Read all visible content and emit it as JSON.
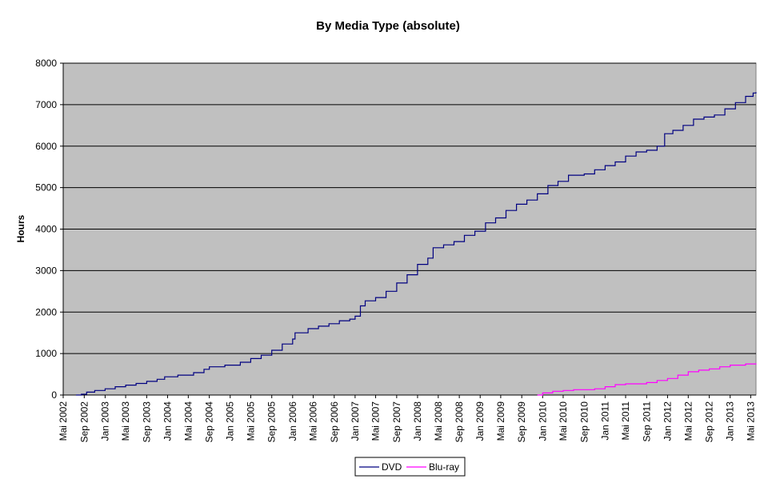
{
  "chart_data": {
    "type": "line",
    "title": "By Media Type (absolute)",
    "xlabel": "",
    "ylabel": "Hours",
    "ylim": [
      0,
      8000
    ],
    "yticks": [
      0,
      1000,
      2000,
      3000,
      4000,
      5000,
      6000,
      7000,
      8000
    ],
    "xlim": [
      "2002-05-01",
      "2013-06-01"
    ],
    "xticks": [
      "Mai 2002",
      "Sep 2002",
      "Jan 2003",
      "Mai 2003",
      "Sep 2003",
      "Jan 2004",
      "Mai 2004",
      "Sep 2004",
      "Jan 2005",
      "Mai 2005",
      "Sep 2005",
      "Jan 2006",
      "Mai 2006",
      "Sep 2006",
      "Jan 2007",
      "Mai 2007",
      "Sep 2007",
      "Jan 2008",
      "Mai 2008",
      "Sep 2008",
      "Jan 2009",
      "Mai 2009",
      "Sep 2009",
      "Jan 2010",
      "Mai 2010",
      "Sep 2010",
      "Jan 2011",
      "Mai 2011",
      "Sep 2011",
      "Jan 2012",
      "Mai 2012",
      "Sep 2012",
      "Jan 2013",
      "Mai 2013"
    ],
    "grid": true,
    "legend": "bottom",
    "series": [
      {
        "name": "DVD",
        "color": "#000080",
        "points": [
          [
            "2002-07-15",
            0
          ],
          [
            "2002-08-15",
            20
          ],
          [
            "2002-09-15",
            70
          ],
          [
            "2002-11-01",
            110
          ],
          [
            "2003-01-01",
            150
          ],
          [
            "2003-03-01",
            200
          ],
          [
            "2003-05-01",
            240
          ],
          [
            "2003-07-01",
            280
          ],
          [
            "2003-09-01",
            330
          ],
          [
            "2003-11-01",
            380
          ],
          [
            "2003-12-15",
            440
          ],
          [
            "2004-03-01",
            480
          ],
          [
            "2004-06-01",
            540
          ],
          [
            "2004-08-01",
            620
          ],
          [
            "2004-09-01",
            680
          ],
          [
            "2004-12-01",
            720
          ],
          [
            "2005-03-01",
            790
          ],
          [
            "2005-05-01",
            880
          ],
          [
            "2005-07-01",
            960
          ],
          [
            "2005-09-01",
            1080
          ],
          [
            "2005-11-01",
            1230
          ],
          [
            "2006-01-01",
            1350
          ],
          [
            "2006-01-15",
            1500
          ],
          [
            "2006-04-01",
            1600
          ],
          [
            "2006-06-01",
            1660
          ],
          [
            "2006-08-01",
            1720
          ],
          [
            "2006-10-01",
            1790
          ],
          [
            "2006-12-01",
            1830
          ],
          [
            "2007-01-01",
            1900
          ],
          [
            "2007-02-01",
            2150
          ],
          [
            "2007-03-01",
            2270
          ],
          [
            "2007-05-01",
            2350
          ],
          [
            "2007-07-01",
            2500
          ],
          [
            "2007-09-01",
            2700
          ],
          [
            "2007-11-01",
            2900
          ],
          [
            "2008-01-01",
            3150
          ],
          [
            "2008-03-01",
            3300
          ],
          [
            "2008-04-01",
            3550
          ],
          [
            "2008-06-01",
            3620
          ],
          [
            "2008-08-01",
            3700
          ],
          [
            "2008-10-01",
            3850
          ],
          [
            "2008-12-01",
            3950
          ],
          [
            "2009-02-01",
            4150
          ],
          [
            "2009-04-01",
            4270
          ],
          [
            "2009-06-01",
            4450
          ],
          [
            "2009-08-01",
            4600
          ],
          [
            "2009-10-01",
            4700
          ],
          [
            "2009-12-01",
            4850
          ],
          [
            "2010-02-01",
            5050
          ],
          [
            "2010-04-01",
            5150
          ],
          [
            "2010-06-01",
            5300
          ],
          [
            "2010-09-01",
            5330
          ],
          [
            "2010-11-01",
            5430
          ],
          [
            "2011-01-01",
            5530
          ],
          [
            "2011-03-01",
            5620
          ],
          [
            "2011-05-01",
            5760
          ],
          [
            "2011-07-01",
            5860
          ],
          [
            "2011-09-01",
            5900
          ],
          [
            "2011-11-01",
            6000
          ],
          [
            "2011-12-15",
            6300
          ],
          [
            "2012-02-01",
            6380
          ],
          [
            "2012-04-01",
            6500
          ],
          [
            "2012-06-01",
            6650
          ],
          [
            "2012-08-01",
            6700
          ],
          [
            "2012-10-01",
            6750
          ],
          [
            "2012-12-01",
            6900
          ],
          [
            "2013-02-01",
            7050
          ],
          [
            "2013-04-01",
            7200
          ],
          [
            "2013-05-15",
            7280
          ],
          [
            "2013-06-01",
            7300
          ]
        ]
      },
      {
        "name": "Blu-ray",
        "color": "#ff00ff",
        "points": [
          [
            "2009-12-01",
            0
          ],
          [
            "2010-01-01",
            50
          ],
          [
            "2010-03-01",
            90
          ],
          [
            "2010-05-01",
            110
          ],
          [
            "2010-07-01",
            130
          ],
          [
            "2010-11-01",
            150
          ],
          [
            "2011-01-01",
            200
          ],
          [
            "2011-03-01",
            250
          ],
          [
            "2011-05-01",
            270
          ],
          [
            "2011-09-01",
            300
          ],
          [
            "2011-11-01",
            350
          ],
          [
            "2012-01-01",
            400
          ],
          [
            "2012-03-01",
            480
          ],
          [
            "2012-05-01",
            560
          ],
          [
            "2012-07-01",
            600
          ],
          [
            "2012-09-01",
            630
          ],
          [
            "2012-11-01",
            680
          ],
          [
            "2013-01-01",
            720
          ],
          [
            "2013-04-01",
            750
          ],
          [
            "2013-06-01",
            760
          ]
        ]
      }
    ]
  }
}
